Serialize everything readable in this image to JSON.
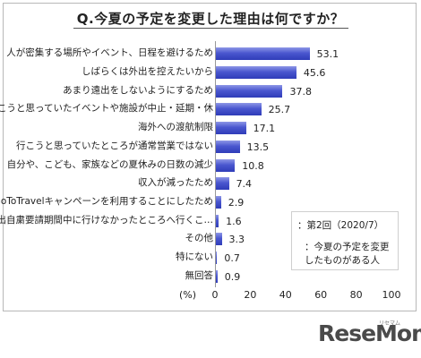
{
  "chart_data": {
    "type": "bar",
    "orientation": "horizontal",
    "title": "Q.今夏の予定を変更した理由は何ですか？",
    "unit_label": "(%)",
    "categories": [
      "人が密集する場所やイベント、日程を避けるため",
      "しばらくは外出を控えたいから",
      "あまり遠出をしないようにするため",
      "行こうと思っていたイベントや施設が中止・延期・休",
      "海外への渡航制限",
      "行こうと思っていたところが通常営業ではない",
      "自分や、こども、家族などの夏休みの日数の減少",
      "収入が減ったため",
      "GoToTravelキャンペーンを利用することにしたため",
      "外出自粛要請期間中に行けなかったところへ行くこ…",
      "その他",
      "特にない",
      "無回答"
    ],
    "series": [
      {
        "name": "：第2回（2020/7）",
        "values": [
          53.1,
          45.6,
          37.8,
          25.7,
          17.1,
          13.5,
          10.8,
          7.4,
          2.9,
          1.6,
          3.3,
          0.7,
          0.9
        ]
      }
    ],
    "value_labels": [
      "53.1",
      "45.6",
      "37.8",
      "25.7",
      "17.1",
      "13.5",
      "10.8",
      "7.4",
      "2.9",
      "1.6",
      "3.3",
      "0.7",
      "0.9"
    ],
    "xlim": [
      0,
      100
    ],
    "xticks": [
      "0",
      "20",
      "40",
      "60",
      "80",
      "100"
    ],
    "legend": {
      "title": "：第2回（2020/7）",
      "note_line1": "：今夏の予定を変更",
      "note_line2": "したものがある人",
      "placement": "bottom-right"
    },
    "grid": false,
    "bar_color": "#3a47c4"
  },
  "logo": {
    "text": "ReseMom",
    "ruby": "リセマム"
  }
}
